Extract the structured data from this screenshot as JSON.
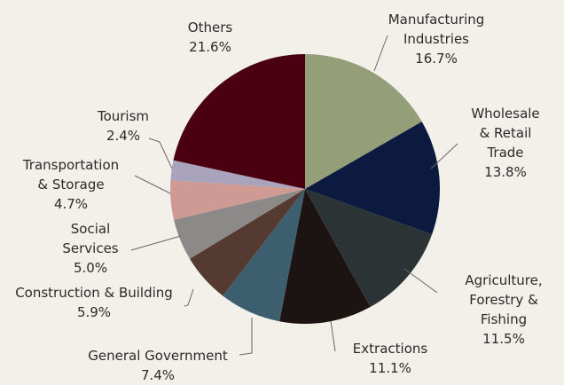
{
  "chart_data": {
    "type": "pie",
    "categories": [
      "Manufacturing\nIndustries",
      "Wholesale\n& Retail Trade",
      "Agriculture,\nForestry & Fishing",
      "Extractions",
      "General Government",
      "Construction & Building",
      "Social\nServices",
      "Transportation\n& Storage",
      "Tourism",
      "Others"
    ],
    "values": [
      16.7,
      13.8,
      11.5,
      11.1,
      7.4,
      5.9,
      5.0,
      4.7,
      2.4,
      21.6
    ],
    "value_labels": [
      "16.7%",
      "13.8%",
      "11.5%",
      "11.1%",
      "7.4%",
      "5.9%",
      "5.0%",
      "4.7%",
      "2.4%",
      "21.6%"
    ],
    "colors": [
      "#949e78",
      "#0d1a40",
      "#2b3335",
      "#1c1412",
      "#3d5e6e",
      "#553a32",
      "#8c8a88",
      "#d09a94",
      "#a9a3bb",
      "#4a0010"
    ]
  }
}
